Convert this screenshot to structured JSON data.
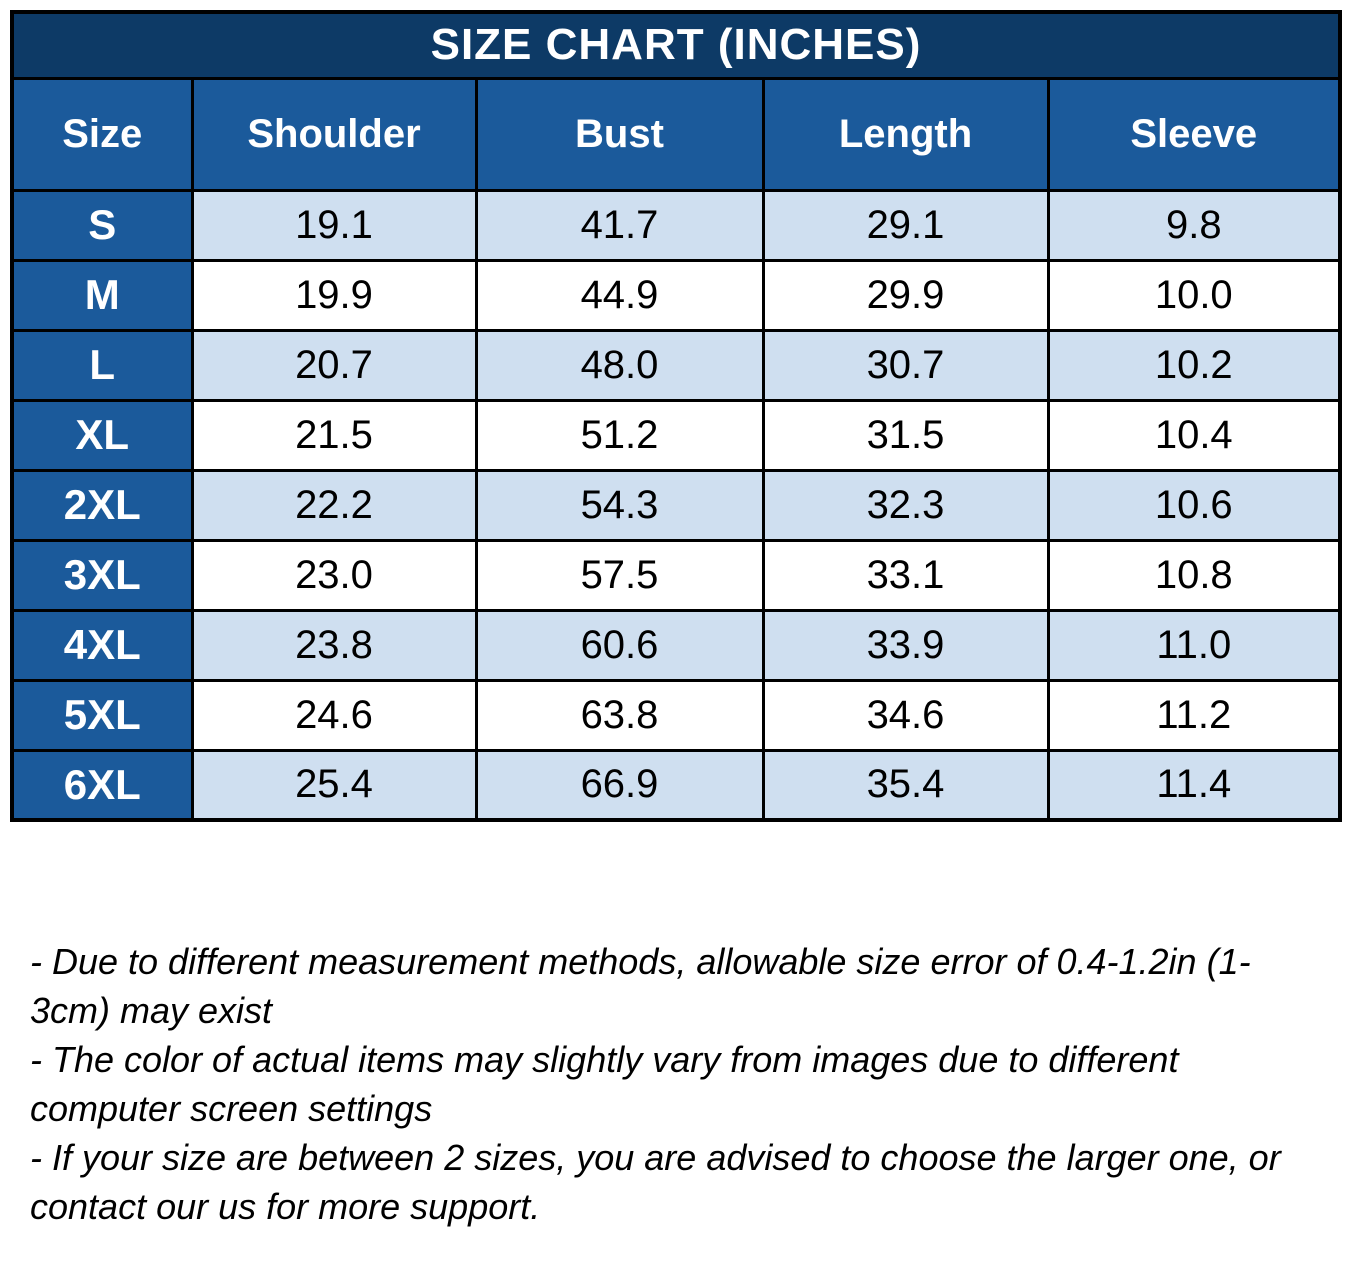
{
  "chart_data": {
    "type": "table",
    "title": "SIZE CHART (INCHES)",
    "columns": [
      "Size",
      "Shoulder",
      "Bust",
      "Length",
      "Sleeve"
    ],
    "rows": [
      [
        "S",
        "19.1",
        "41.7",
        "29.1",
        "9.8"
      ],
      [
        "M",
        "19.9",
        "44.9",
        "29.9",
        "10.0"
      ],
      [
        "L",
        "20.7",
        "48.0",
        "30.7",
        "10.2"
      ],
      [
        "XL",
        "21.5",
        "51.2",
        "31.5",
        "10.4"
      ],
      [
        "2XL",
        "22.2",
        "54.3",
        "32.3",
        "10.6"
      ],
      [
        "3XL",
        "23.0",
        "57.5",
        "33.1",
        "10.8"
      ],
      [
        "4XL",
        "23.8",
        "60.6",
        "33.9",
        "11.0"
      ],
      [
        "5XL",
        "24.6",
        "63.8",
        "34.6",
        "11.2"
      ],
      [
        "6XL",
        "25.4",
        "66.9",
        "35.4",
        "11.4"
      ]
    ],
    "layout": {
      "alternating_row_shading": "odd rows (S, L, 2XL, 4XL, 6XL) light blue; even rows white",
      "size_column_style": "blue header-style cells"
    }
  },
  "notes": [
    "- Due to different measurement methods, allowable size error of 0.4-1.2in (1-3cm) may exist",
    "- The color of actual items may slightly vary from images due to different computer screen settings",
    "- If your size are between 2 sizes, you are advised to choose the larger one, or contact our us for more support."
  ],
  "colors": {
    "title_bar": "#0D3A66",
    "header": "#1B5A9B",
    "row_alt": "#CFDFF0",
    "row": "#FFFFFF",
    "border": "#000000",
    "header_text": "#FFFFFF",
    "body_text": "#000000"
  }
}
